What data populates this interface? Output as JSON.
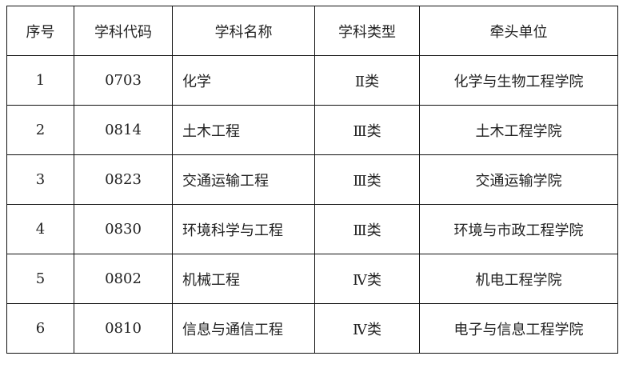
{
  "headers": [
    "序号",
    "学科代码",
    "学科名称",
    "学科类型",
    "牵头单位"
  ],
  "rows": [
    {
      "no": "1",
      "code": "0703",
      "name": "化学",
      "type": "Ⅱ类",
      "unit": "化学与生物工程学院"
    },
    {
      "no": "2",
      "code": "0814",
      "name": "土木工程",
      "type": "Ⅲ类",
      "unit": "土木工程学院"
    },
    {
      "no": "3",
      "code": "0823",
      "name": "交通运输工程",
      "type": "Ⅲ类",
      "unit": "交通运输学院"
    },
    {
      "no": "4",
      "code": "0830",
      "name": "环境科学与工程",
      "type": "Ⅲ类",
      "unit": "环境与市政工程学院"
    },
    {
      "no": "5",
      "code": "0802",
      "name": "机械工程",
      "type": "Ⅳ类",
      "unit": "机电工程学院"
    },
    {
      "no": "6",
      "code": "0810",
      "name": "信息与通信工程",
      "type": "Ⅳ类",
      "unit": "电子与信息工程学院"
    }
  ]
}
